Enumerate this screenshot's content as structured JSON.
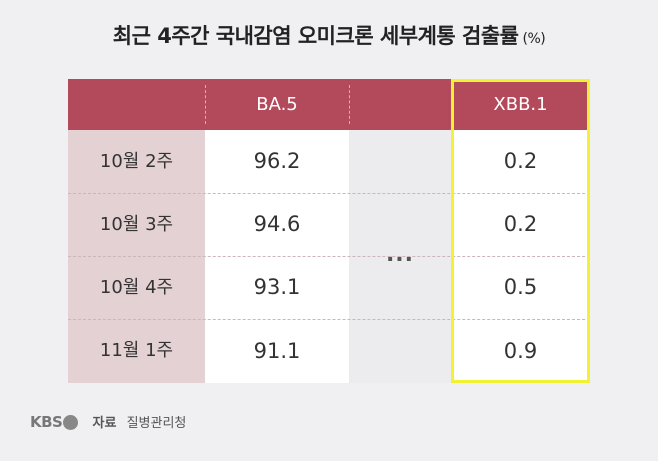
{
  "title": {
    "main": "최근 4주간 국내감염 오미크론 세부계통 검출률",
    "unit": "(%)"
  },
  "table": {
    "headers": [
      "",
      "BA.5",
      "",
      "XBB.1"
    ],
    "ellipsis": "...",
    "rows": [
      {
        "label": "10월 2주",
        "ba5": "96.2",
        "xbb1": "0.2"
      },
      {
        "label": "10월 3주",
        "ba5": "94.6",
        "xbb1": "0.2"
      },
      {
        "label": "10월 4주",
        "ba5": "93.1",
        "xbb1": "0.5"
      },
      {
        "label": "11월 1주",
        "ba5": "91.1",
        "xbb1": "0.9"
      }
    ]
  },
  "footer": {
    "logo": "KBS",
    "source_label": "자료",
    "source": "질병관리청"
  },
  "colors": {
    "header": "#b34a5c",
    "row_label_bg": "#e3d1d4",
    "highlight": "#f2f232"
  }
}
